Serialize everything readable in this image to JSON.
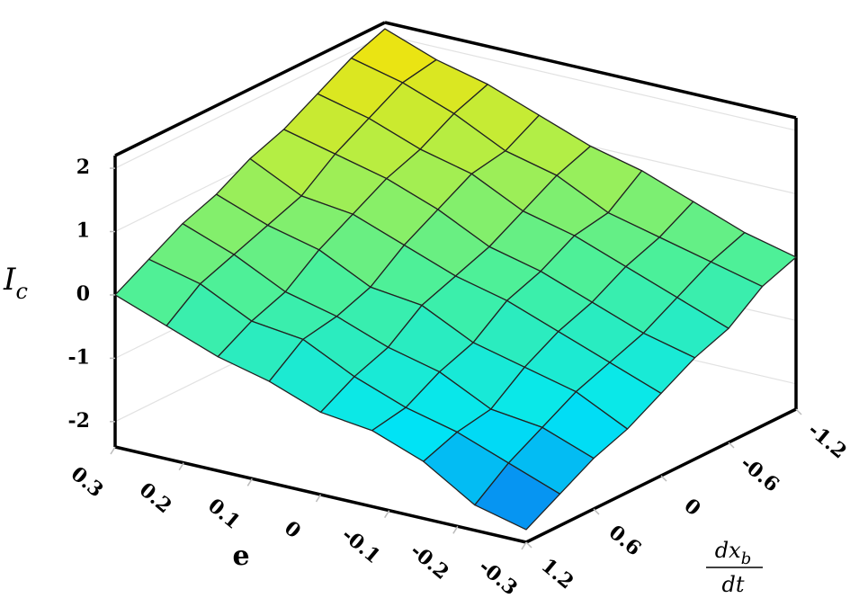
{
  "chart_data": {
    "type": "surface",
    "xlabel": "e",
    "zlabel": "I",
    "zlabel_sub": "c",
    "ylabel_num": "dx",
    "ylabel_num_sub": "b",
    "ylabel_den": "dt",
    "x": [
      0.3,
      0.225,
      0.15,
      0.075,
      0,
      -0.075,
      -0.15,
      -0.225,
      -0.3
    ],
    "y": [
      1.2,
      0.9,
      0.6,
      0.3,
      0,
      -0.3,
      -0.6,
      -0.9,
      -1.2
    ],
    "z": [
      [
        0.0,
        0.3,
        0.6,
        0.8,
        1.1,
        1.3,
        1.6,
        1.9,
        2.1
      ],
      [
        -0.3,
        0.1,
        0.3,
        0.5,
        0.7,
        1.1,
        1.4,
        1.7,
        1.8
      ],
      [
        -0.6,
        -0.3,
        -0.1,
        0.3,
        0.6,
        0.9,
        1.1,
        1.4,
        1.6
      ],
      [
        -0.8,
        -0.4,
        -0.3,
        -0.1,
        0.3,
        0.6,
        0.9,
        1.0,
        1.3
      ],
      [
        -1.1,
        -0.8,
        -0.6,
        -0.2,
        0.0,
        0.2,
        0.5,
        0.8,
        1.0
      ],
      [
        -1.2,
        -1.1,
        -0.8,
        -0.6,
        -0.2,
        0.0,
        0.3,
        0.4,
        0.8
      ],
      [
        -1.5,
        -1.3,
        -1.2,
        -0.8,
        -0.5,
        -0.3,
        0.0,
        0.2,
        0.5
      ],
      [
        -2.0,
        -1.6,
        -1.3,
        -1.0,
        -0.8,
        -0.6,
        -0.3,
        0.0,
        0.2
      ],
      [
        -2.2,
        -1.9,
        -1.6,
        -1.4,
        -1.1,
        -0.8,
        -0.6,
        -0.2,
        0.0
      ]
    ],
    "xlim": [
      -0.3,
      0.3
    ],
    "ylim": [
      -1.2,
      1.2
    ],
    "zlim": [
      -2.4,
      2.2
    ],
    "xticks": [
      0.3,
      0.2,
      0.1,
      0,
      -0.1,
      -0.2,
      -0.3
    ],
    "yticks": [
      1.2,
      0.6,
      0,
      -0.6,
      -1.2
    ],
    "zticks": [
      2,
      1,
      0,
      -1,
      -2
    ],
    "grid": true,
    "colormap": [
      "#0a5cf0",
      "#00e6f5",
      "#44f0a0",
      "#b4ee44",
      "#ffe000"
    ]
  }
}
